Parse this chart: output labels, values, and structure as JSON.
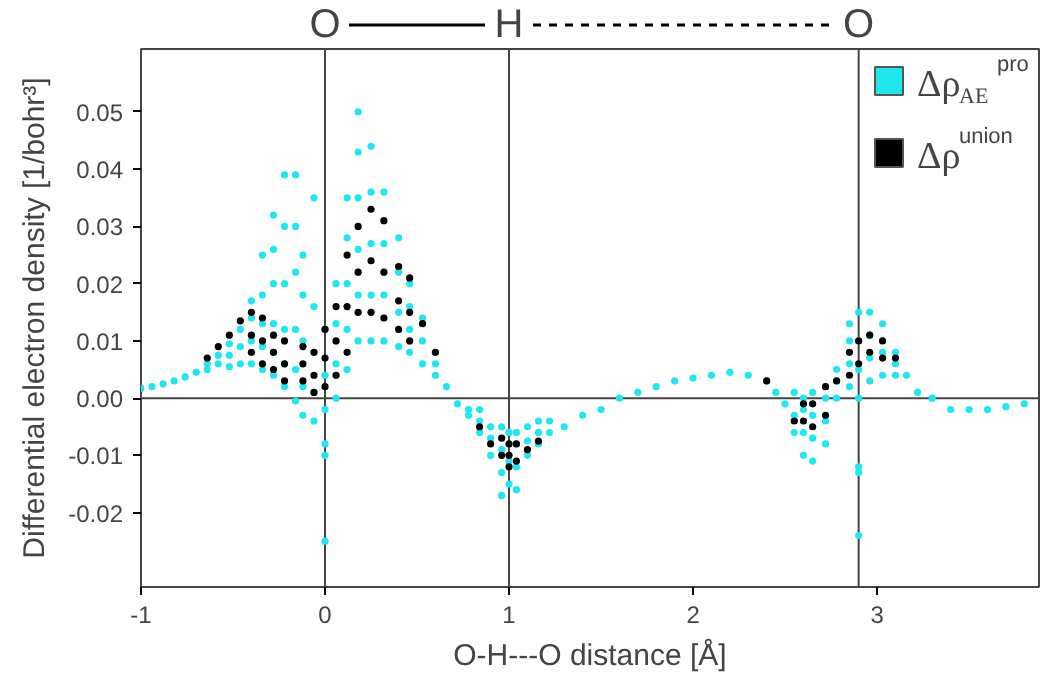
{
  "chart_data": {
    "type": "scatter",
    "xlabel": "O-H---O distance [Å]",
    "ylabel": "Differential electron density [1/bohr³]",
    "xlim": [
      -1,
      3.88
    ],
    "ylim": [
      -0.033,
      0.061
    ],
    "xticks": [
      -1,
      0,
      1,
      2,
      3
    ],
    "yticks": [
      {
        "value": -0.02,
        "label": "-0.02"
      },
      {
        "value": -0.01,
        "label": "-0.01"
      },
      {
        "value": 0,
        "label": "0.00"
      },
      0.01,
      0.02,
      0.03,
      0.04,
      0.05
    ],
    "grid": false,
    "legend": "top right",
    "marker": "circle",
    "ref_lines": [
      {
        "axis": "x",
        "value": 0,
        "label": "O"
      },
      {
        "axis": "x",
        "value": 1,
        "label": "H"
      },
      {
        "axis": "x",
        "value": 2.9,
        "label": "O"
      },
      {
        "axis": "y",
        "value": 0,
        "label": null
      }
    ],
    "series": [
      {
        "name": "Δρ$_{AE}$$^{pro}$",
        "color": "#1ee8ee",
        "x": [
          -1,
          -0.94,
          -0.88,
          -0.82,
          -0.76,
          -0.7,
          -0.64,
          -0.64,
          -0.58,
          -0.58,
          -0.52,
          -0.52,
          -0.52,
          -0.46,
          -0.46,
          -0.46,
          -0.4,
          -0.4,
          -0.4,
          -0.4,
          -0.34,
          -0.34,
          -0.34,
          -0.34,
          -0.34,
          -0.28,
          -0.28,
          -0.28,
          -0.28,
          -0.28,
          -0.28,
          -0.22,
          -0.22,
          -0.22,
          -0.22,
          -0.22,
          -0.22,
          -0.16,
          -0.16,
          -0.16,
          -0.16,
          -0.16,
          -0.16,
          -0.12,
          -0.12,
          -0.12,
          -0.12,
          -0.12,
          -0.06,
          -0.06,
          -0.06,
          -0.06,
          -0.06,
          0,
          0,
          0,
          0,
          0,
          0,
          0.06,
          0.06,
          0.06,
          0.06,
          0.12,
          0.12,
          0.12,
          0.12,
          0.12,
          0.18,
          0.18,
          0.18,
          0.18,
          0.18,
          0.18,
          0.25,
          0.25,
          0.25,
          0.25,
          0.25,
          0.32,
          0.32,
          0.32,
          0.32,
          0.4,
          0.4,
          0.4,
          0.4,
          0.46,
          0.46,
          0.46,
          0.46,
          0.53,
          0.53,
          0.53,
          0.6,
          0.6,
          0.6,
          0.66,
          0.72,
          0.78,
          0.78,
          0.84,
          0.84,
          0.84,
          0.9,
          0.9,
          0.9,
          0.96,
          0.96,
          0.96,
          0.96,
          1.0,
          1.0,
          1.0,
          1.04,
          1.04,
          1.04,
          1.04,
          1.1,
          1.1,
          1.1,
          1.16,
          1.16,
          1.16,
          1.22,
          1.22,
          1.3,
          1.4,
          1.5,
          1.6,
          1.7,
          1.8,
          1.9,
          2.0,
          2.1,
          2.2,
          2.3,
          2.4,
          2.45,
          2.5,
          2.55,
          2.55,
          2.55,
          2.6,
          2.6,
          2.6,
          2.6,
          2.65,
          2.65,
          2.65,
          2.65,
          2.72,
          2.72,
          2.72,
          2.72,
          2.78,
          2.78,
          2.78,
          2.85,
          2.85,
          2.85,
          2.85,
          2.9,
          2.9,
          2.9,
          2.9,
          2.9,
          2.9,
          2.9,
          2.96,
          2.96,
          2.96,
          2.96,
          3.03,
          3.03,
          3.03,
          3.1,
          3.1,
          3.1,
          3.16,
          3.22,
          3.3,
          3.4,
          3.5,
          3.6,
          3.7,
          3.8
        ],
        "values": [
          0.0017,
          0.002,
          0.0025,
          0.003,
          0.0037,
          0.0045,
          0.005,
          0.006,
          0.006,
          0.0075,
          0.0055,
          0.0075,
          0.0095,
          0.006,
          0.009,
          0.012,
          0.006,
          0.01,
          0.014,
          0.017,
          0.005,
          0.009,
          0.013,
          0.018,
          0.025,
          0.004,
          0.008,
          0.013,
          0.02,
          0.026,
          0.032,
          0.002,
          0.006,
          0.012,
          0.02,
          0.03,
          0.039,
          -0.0005,
          0.005,
          0.012,
          0.022,
          0.03,
          0.039,
          -0.003,
          0.002,
          0.01,
          0.018,
          0.025,
          -0.004,
          0.001,
          0.008,
          0.016,
          0.035,
          -0.025,
          -0.01,
          -0.008,
          -0.002,
          0.004,
          0.012,
          0,
          0.006,
          0.013,
          0.02,
          0.005,
          0.012,
          0.02,
          0.028,
          0.035,
          0.01,
          0.018,
          0.026,
          0.035,
          0.043,
          0.05,
          0.01,
          0.018,
          0.027,
          0.036,
          0.044,
          0.01,
          0.018,
          0.027,
          0.036,
          0.009,
          0.015,
          0.022,
          0.028,
          0.008,
          0.012,
          0.016,
          0.02,
          0.006,
          0.01,
          0.014,
          0.004,
          0.006,
          0.008,
          0.002,
          -0.001,
          -0.003,
          -0.002,
          -0.006,
          -0.004,
          -0.002,
          -0.01,
          -0.007,
          -0.005,
          -0.017,
          -0.013,
          -0.009,
          -0.005,
          -0.015,
          -0.011,
          -0.006,
          -0.016,
          -0.012,
          -0.008,
          -0.006,
          -0.01,
          -0.0075,
          -0.005,
          -0.008,
          -0.006,
          -0.004,
          -0.006,
          -0.004,
          -0.005,
          -0.003,
          -0.002,
          0,
          0.001,
          0.002,
          0.003,
          0.0035,
          0.004,
          0.0045,
          0.004,
          0.003,
          0.001,
          -0.001,
          -0.006,
          -0.003,
          0.001,
          -0.01,
          -0.006,
          -0.002,
          0,
          -0.011,
          -0.007,
          -0.003,
          0.001,
          -0.008,
          -0.004,
          0,
          0.002,
          0,
          0.003,
          0.005,
          0.002,
          0.006,
          0.01,
          0.013,
          -0.024,
          -0.013,
          -0.012,
          0,
          0.005,
          0.01,
          0.015,
          0.003,
          0.007,
          0.011,
          0.015,
          0.004,
          0.008,
          0.013,
          0.004,
          0.006,
          0.008,
          0.004,
          0.001,
          0,
          -0.002,
          -0.002,
          -0.002,
          -0.0015,
          -0.001
        ]
      },
      {
        "name": "Δρ$^{union}$",
        "color": "#000000",
        "x": [
          -0.64,
          -0.58,
          -0.52,
          -0.46,
          -0.4,
          -0.4,
          -0.4,
          -0.34,
          -0.34,
          -0.34,
          -0.28,
          -0.28,
          -0.28,
          -0.22,
          -0.22,
          -0.22,
          -0.12,
          -0.12,
          -0.12,
          -0.06,
          -0.06,
          -0.06,
          0,
          0,
          0,
          0.06,
          0.06,
          0.06,
          0.12,
          0.12,
          0.12,
          0.18,
          0.18,
          0.18,
          0.25,
          0.25,
          0.25,
          0.32,
          0.32,
          0.32,
          0.4,
          0.4,
          0.4,
          0.46,
          0.46,
          0.46,
          0.53,
          0.6,
          0.84,
          0.9,
          0.96,
          0.96,
          1.0,
          1.0,
          1.0,
          1.04,
          1.04,
          1.1,
          1.16,
          2.4,
          2.55,
          2.6,
          2.6,
          2.65,
          2.65,
          2.72,
          2.72,
          2.78,
          2.85,
          2.85,
          2.9,
          2.9,
          2.96,
          2.96,
          3.03,
          3.03,
          3.1
        ],
        "values": [
          0.007,
          0.009,
          0.011,
          0.0135,
          0.008,
          0.011,
          0.015,
          0.006,
          0.01,
          0.014,
          0.005,
          0.008,
          0.011,
          0.003,
          0.006,
          0.01,
          0.003,
          0.006,
          0.009,
          0.001,
          0.004,
          0.008,
          0.002,
          0.007,
          0.012,
          0.004,
          0.01,
          0.016,
          0.008,
          0.016,
          0.025,
          0.015,
          0.022,
          0.03,
          0.015,
          0.024,
          0.033,
          0.014,
          0.022,
          0.031,
          0.012,
          0.017,
          0.023,
          0.01,
          0.015,
          0.021,
          0.013,
          0.008,
          -0.005,
          -0.008,
          -0.01,
          -0.007,
          -0.012,
          -0.01,
          -0.008,
          -0.011,
          -0.008,
          -0.009,
          -0.0075,
          0.003,
          -0.004,
          -0.004,
          -0.001,
          -0.005,
          -0.001,
          -0.003,
          0.002,
          0.003,
          0.004,
          0.008,
          0.006,
          0.01,
          0.008,
          0.011,
          0.007,
          0.01,
          0.007
        ]
      }
    ]
  }
}
